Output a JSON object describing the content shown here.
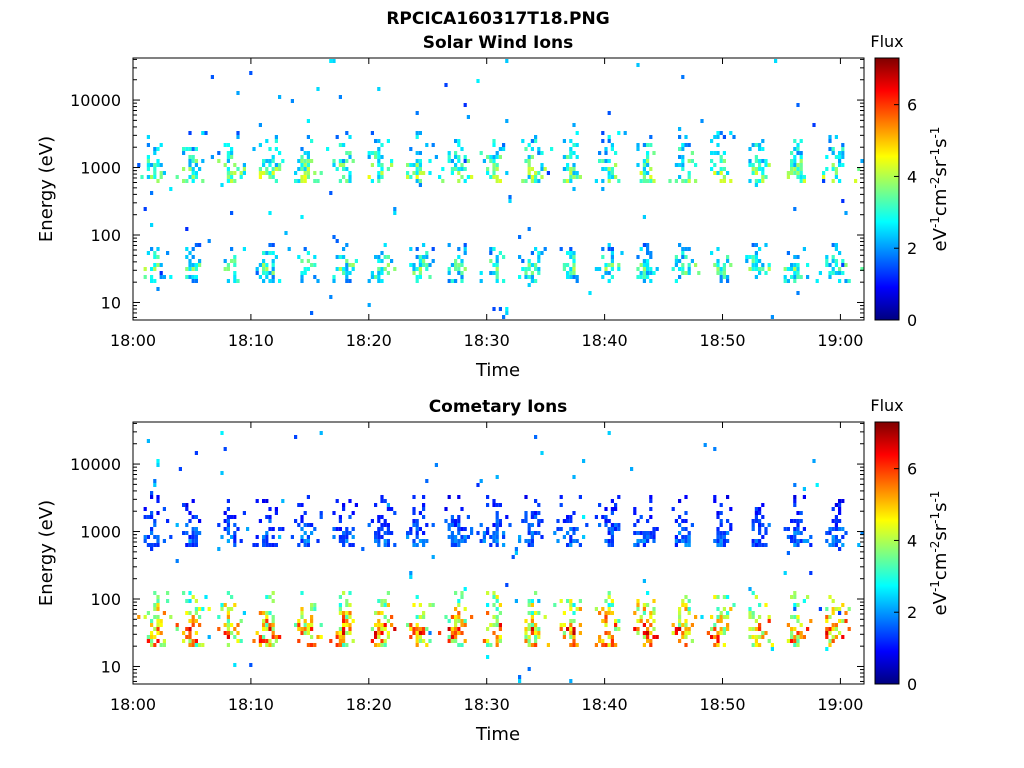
{
  "figure_title": "RPCICA160317T18.PNG",
  "chart_data": [
    {
      "type": "heatmap",
      "title": "Solar Wind Ions",
      "xlabel": "Time",
      "ylabel": "Energy (eV)",
      "xlim": [
        "18:00",
        "19:02"
      ],
      "ylim": [
        5.5,
        42000
      ],
      "yscale": "log",
      "xticks": [
        "18:00",
        "18:10",
        "18:20",
        "18:30",
        "18:40",
        "18:50",
        "19:00"
      ],
      "yticks": [
        {
          "value": 10,
          "label": "10"
        },
        {
          "value": 100,
          "label": "100"
        },
        {
          "value": 1000,
          "label": "1000"
        },
        {
          "value": 10000,
          "label": "10000"
        }
      ],
      "colorbar": {
        "title": "Flux",
        "label": "eV-1cm-2sr-1s-1",
        "range": [
          0,
          7.3
        ],
        "ticks": [
          0,
          2,
          4,
          6
        ],
        "colormap": "jet"
      },
      "pulse_period_min": 3.2,
      "bands": [
        {
          "name": "main",
          "energy_center_eV": 800,
          "energy_spread_eV": [
            600,
            3500
          ],
          "typical_flux": 3.8
        },
        {
          "name": "low",
          "energy_center_eV": 35,
          "energy_spread_eV": [
            22,
            80
          ],
          "typical_flux": 3.5
        }
      ]
    },
    {
      "type": "heatmap",
      "title": "Cometary Ions",
      "xlabel": "Time",
      "ylabel": "Energy (eV)",
      "xlim": [
        "18:00",
        "19:02"
      ],
      "ylim": [
        5.5,
        42000
      ],
      "yscale": "log",
      "xticks": [
        "18:00",
        "18:10",
        "18:20",
        "18:30",
        "18:40",
        "18:50",
        "19:00"
      ],
      "yticks": [
        {
          "value": 10,
          "label": "10"
        },
        {
          "value": 100,
          "label": "100"
        },
        {
          "value": 1000,
          "label": "1000"
        },
        {
          "value": 10000,
          "label": "10000"
        }
      ],
      "colorbar": {
        "title": "Flux",
        "label": "eV-1cm-2sr-1s-1",
        "range": [
          0,
          7.3
        ],
        "ticks": [
          0,
          2,
          4,
          6
        ],
        "colormap": "jet"
      },
      "pulse_period_min": 3.2,
      "bands": [
        {
          "name": "main",
          "energy_center_eV": 800,
          "energy_spread_eV": [
            600,
            3500
          ],
          "typical_flux": 1.8
        },
        {
          "name": "low",
          "energy_center_eV": 35,
          "energy_spread_eV": [
            20,
            150
          ],
          "typical_flux": 5.8
        }
      ]
    }
  ]
}
